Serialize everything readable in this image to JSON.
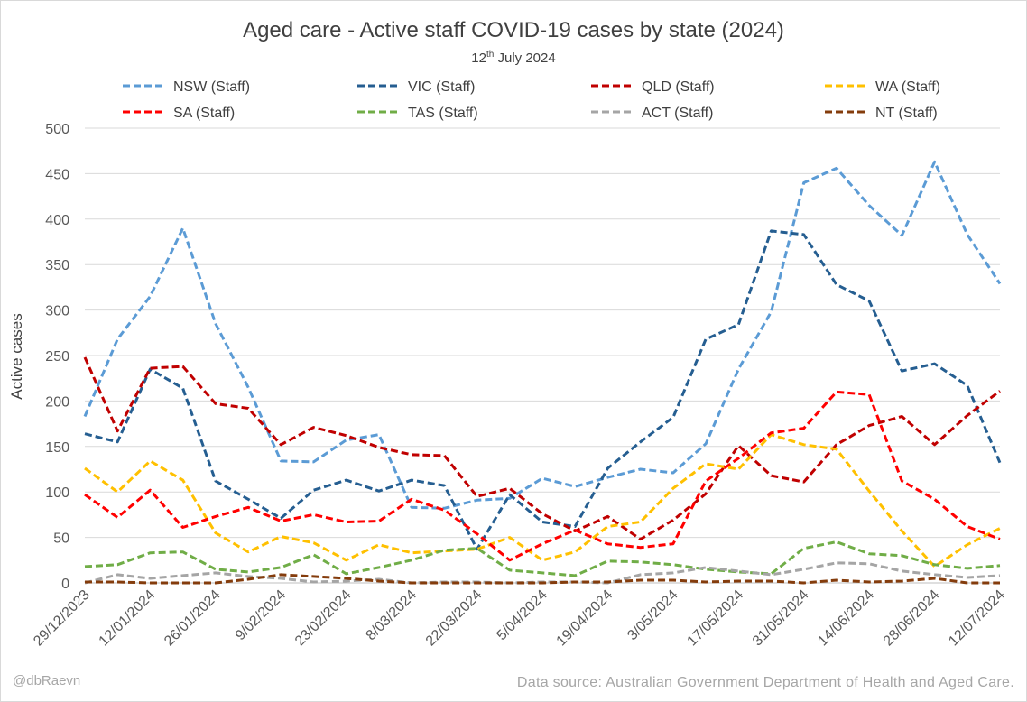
{
  "chart_data": {
    "type": "line",
    "title": "Aged care - Active staff COVID-19 cases by state (2024)",
    "subtitle": {
      "day": "12",
      "suffix": "th",
      "rest": "July 2024"
    },
    "ylabel": "Active cases",
    "xlabel": "",
    "ylim": [
      0,
      500
    ],
    "yticks": [
      0,
      50,
      100,
      150,
      200,
      250,
      300,
      350,
      400,
      450,
      500
    ],
    "grid": true,
    "legend_position": "top",
    "x": [
      "29/12/2023",
      "5/01/2024",
      "12/01/2024",
      "19/01/2024",
      "26/01/2024",
      "2/02/2024",
      "9/02/2024",
      "16/02/2024",
      "23/02/2024",
      "1/03/2024",
      "8/03/2024",
      "15/03/2024",
      "22/03/2024",
      "29/03/2024",
      "5/04/2024",
      "12/04/2024",
      "19/04/2024",
      "26/04/2024",
      "3/05/2024",
      "10/05/2024",
      "17/05/2024",
      "24/05/2024",
      "31/05/2024",
      "7/06/2024",
      "14/06/2024",
      "21/06/2024",
      "28/06/2024",
      "5/07/2024",
      "12/07/2024"
    ],
    "xtick_labels": [
      "29/12/2023",
      "12/01/2024",
      "26/01/2024",
      "9/02/2024",
      "23/02/2024",
      "8/03/2024",
      "22/03/2024",
      "5/04/2024",
      "19/04/2024",
      "3/05/2024",
      "17/05/2024",
      "31/05/2024",
      "14/06/2024",
      "28/06/2024",
      "12/07/2024"
    ],
    "series": [
      {
        "name": "NSW (Staff)",
        "color": "#5b9bd5",
        "values": [
          183,
          268,
          315,
          390,
          285,
          215,
          134,
          133,
          157,
          163,
          83,
          82,
          91,
          93,
          115,
          106,
          116,
          125,
          121,
          153,
          235,
          298,
          440,
          456,
          415,
          382,
          463,
          383,
          329
        ]
      },
      {
        "name": "VIC (Staff)",
        "color": "#255e91",
        "values": [
          164,
          155,
          235,
          214,
          112,
          92,
          71,
          102,
          113,
          101,
          113,
          107,
          37,
          97,
          67,
          62,
          126,
          155,
          182,
          268,
          284,
          387,
          383,
          328,
          310,
          233,
          241,
          217,
          132
        ]
      },
      {
        "name": "QLD (Staff)",
        "color": "#c00000",
        "values": [
          248,
          167,
          236,
          238,
          197,
          192,
          152,
          171,
          162,
          149,
          141,
          140,
          95,
          104,
          76,
          57,
          73,
          48,
          69,
          98,
          151,
          118,
          111,
          152,
          173,
          183,
          152,
          184,
          211
        ]
      },
      {
        "name": "WA (Staff)",
        "color": "#ffc000",
        "values": [
          126,
          100,
          134,
          113,
          55,
          34,
          51,
          44,
          25,
          42,
          33,
          35,
          37,
          50,
          25,
          34,
          62,
          67,
          104,
          131,
          125,
          163,
          152,
          147,
          101,
          57,
          18,
          42,
          60
        ]
      },
      {
        "name": "SA (Staff)",
        "color": "#ff0000",
        "values": [
          97,
          72,
          102,
          61,
          73,
          83,
          68,
          75,
          67,
          68,
          92,
          80,
          54,
          25,
          43,
          58,
          43,
          39,
          43,
          112,
          137,
          165,
          170,
          210,
          207,
          112,
          92,
          62,
          48
        ]
      },
      {
        "name": "TAS (Staff)",
        "color": "#70ad47",
        "values": [
          18,
          20,
          33,
          34,
          15,
          12,
          17,
          31,
          10,
          17,
          25,
          36,
          38,
          14,
          11,
          8,
          24,
          23,
          20,
          15,
          12,
          10,
          38,
          45,
          32,
          30,
          20,
          16,
          19
        ]
      },
      {
        "name": "ACT (Staff)",
        "color": "#a5a5a5",
        "values": [
          0,
          9,
          5,
          8,
          11,
          7,
          5,
          1,
          2,
          4,
          0,
          1,
          1,
          0,
          1,
          1,
          0,
          9,
          11,
          17,
          13,
          9,
          15,
          22,
          21,
          13,
          9,
          6,
          8
        ]
      },
      {
        "name": "NT (Staff)",
        "color": "#843c0c",
        "values": [
          1,
          1,
          0,
          0,
          0,
          4,
          9,
          7,
          5,
          2,
          0,
          0,
          0,
          0,
          0,
          1,
          1,
          3,
          3,
          1,
          2,
          2,
          0,
          3,
          1,
          2,
          5,
          0,
          0
        ]
      }
    ]
  },
  "footer": {
    "credit": "@dbRaevn",
    "source": "Data source: Australian Government Department of Health and Aged Care."
  }
}
